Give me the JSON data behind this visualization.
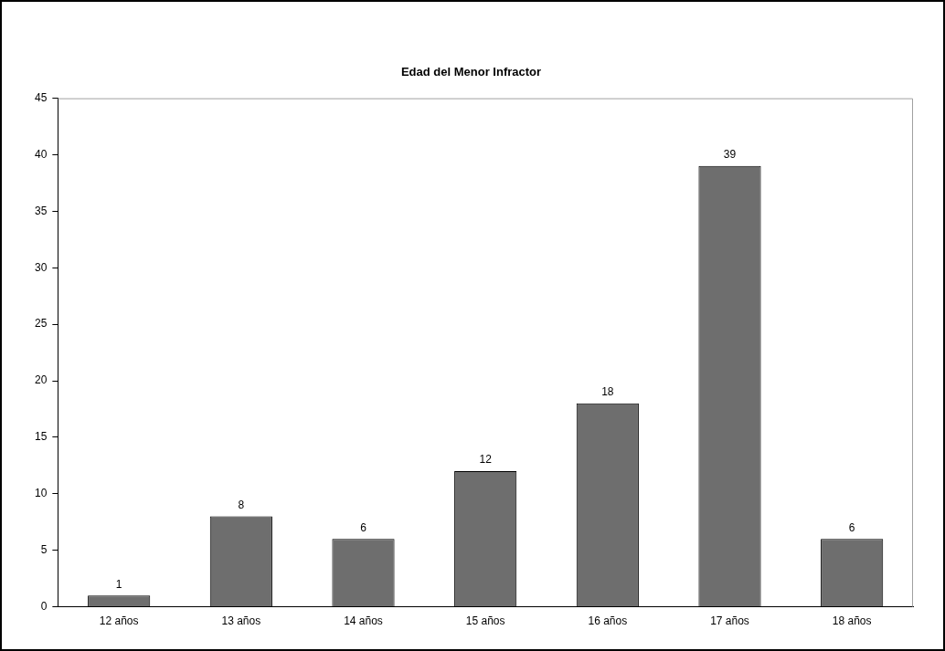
{
  "chart_data": {
    "type": "bar",
    "title": "Edad del Menor Infractor",
    "categories": [
      "12 años",
      "13 años",
      "14 años",
      "15 años",
      "16 años",
      "17 años",
      "18 años"
    ],
    "values": [
      1,
      8,
      6,
      12,
      18,
      39,
      6
    ],
    "color": "#6e6e6e",
    "ylim": [
      0,
      45
    ],
    "yticks": [
      0,
      5,
      10,
      15,
      20,
      25,
      30,
      35,
      40,
      45
    ],
    "grid": false,
    "data_labels": true,
    "legend": false
  }
}
